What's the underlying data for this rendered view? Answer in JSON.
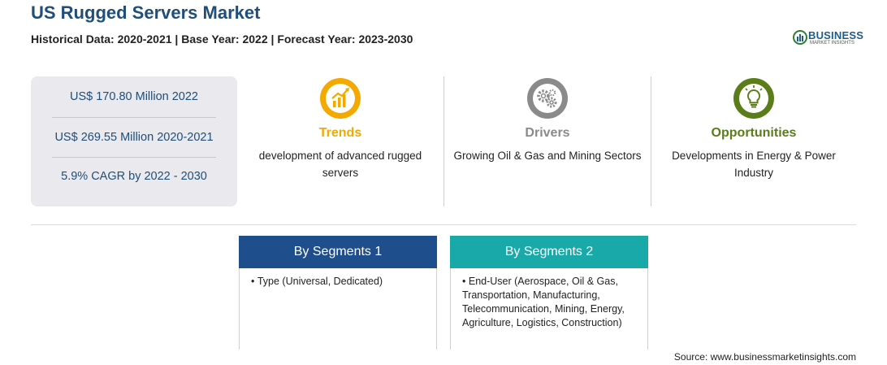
{
  "header": {
    "title": "US Rugged Servers Market",
    "subtitle": "Historical Data: 2020-2021 | Base Year: 2022 | Forecast Year: 2023-2030"
  },
  "logo": {
    "brand": "BUSINESS",
    "sub": "MARKET INSIGHTS"
  },
  "stats": [
    {
      "text": "US$ 170.80 Million 2022"
    },
    {
      "text": "US$ 269.55 Million 2020-2021"
    },
    {
      "text": "5.9% CAGR by 2022 - 2030"
    }
  ],
  "columns": [
    {
      "heading": "Trends",
      "description": "development of advanced rugged servers",
      "color": "#f4a900",
      "icon": "trending-chart-icon"
    },
    {
      "heading": "Drivers",
      "description": "Growing Oil & Gas and Mining Sectors",
      "color": "#8a8a8a",
      "icon": "gears-icon"
    },
    {
      "heading": "Opportunities",
      "description": "Developments in Energy & Power Industry",
      "color": "#5a7d1a",
      "icon": "lightbulb-icon"
    }
  ],
  "segments": [
    {
      "title": "By Segments 1",
      "color": "#1f4e8c",
      "items": [
        "Type (Universal, Dedicated)"
      ]
    },
    {
      "title": "By Segments 2",
      "color": "#1aa9a9",
      "items": [
        "End-User (Aerospace, Oil & Gas, Transportation, Manufacturing, Telecommunication, Mining, Energy, Agriculture, Logistics, Construction)"
      ]
    }
  ],
  "source": "Source: www.businessmarketinsights.com"
}
